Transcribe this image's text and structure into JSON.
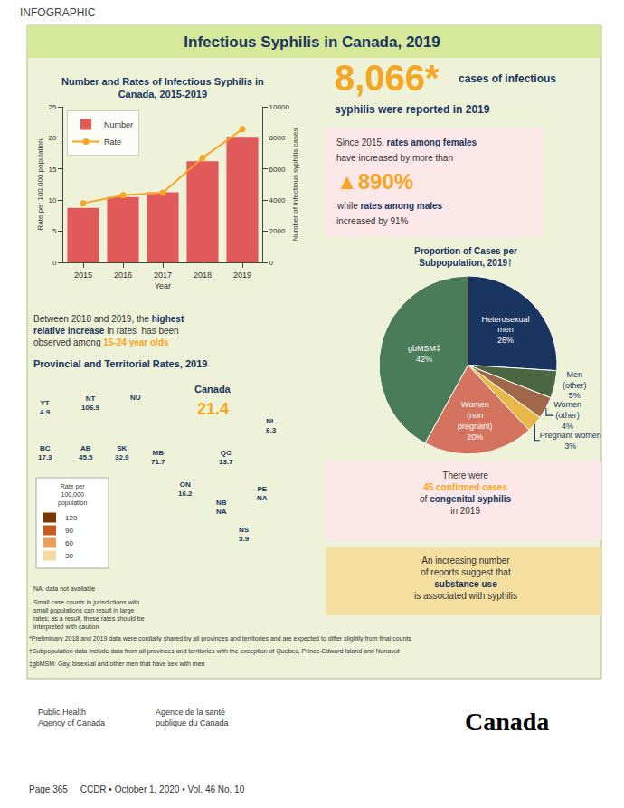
{
  "title": "Infectious Syphilis in Canada, 2019",
  "palette": {
    "navy": "#1a3560",
    "orange": "#f5a623",
    "text": "#333333",
    "header": "#444444",
    "panel": "#eef2d8",
    "band": "#d6e89a",
    "border": "#b0b880",
    "pink": "#fce8e8",
    "sand": "#f5dfa0"
  },
  "chart_data": [
    {
      "type": "bar",
      "title": "Number and Rates of Infectious Syphilis in\nCanada, 2015-2019",
      "x": [
        2015,
        2016,
        2017,
        2018,
        2019
      ],
      "xlim": [
        2014.5,
        2019.5
      ],
      "xticks": [
        2015,
        2016,
        2017,
        2018,
        2019
      ],
      "x_label": "Year",
      "y_label": "Number of infectious syphilis cases",
      "y2_label": "Rate per 100,000 population",
      "ylim": [
        0,
        10000
      ],
      "yticks": [
        0,
        2000,
        4000,
        6000,
        8000,
        10000
      ],
      "y2lim": [
        0,
        25
      ],
      "y2ticks": [
        0,
        5,
        10,
        15,
        20,
        25
      ],
      "grid": false,
      "legend": "upper left",
      "series": [
        {
          "name": "Number",
          "type": "bar",
          "color": "#e05a5a",
          "values": [
            3500,
            4200,
            4500,
            6500,
            8066
          ]
        },
        {
          "name": "Rate",
          "type": "line",
          "color": "#f5a623",
          "marker": "circle",
          "axis": "y2",
          "values": [
            9.5,
            10.8,
            11.2,
            16.8,
            21.4
          ]
        }
      ]
    },
    {
      "type": "pie",
      "title": "Proportion of Cases per\nSubpopulation, 2019†",
      "values": [
        26,
        5,
        4,
        3,
        20,
        42
      ],
      "value_labels": [
        "Heterosexual\nmen\n26%",
        "Men\n(other)\n5%",
        "Women\n(other)\n4%",
        "Pregnant women\n3%",
        "Women\n(non\npregnant)\n20%",
        "gbMSM‡\n42%"
      ],
      "colors": [
        "#1a3560",
        "#4a6741",
        "#a0674a",
        "#e8b84b",
        "#d4735e",
        "#4a7c5a"
      ]
    }
  ],
  "map_legend": {
    "title": "Rate per\n100,000\npopulation",
    "values": [
      "120",
      "90",
      "60",
      "30"
    ],
    "colors": [
      "#7b3600",
      "#c45c1e",
      "#e8a05a",
      "#f5d9a0"
    ]
  },
  "annotations": [
    [
      {
        "text": "INFOGRAPHIC",
        "color": "#444444"
      }
    ],
    [
      {
        "text": "Between 2018 and 2019, the ",
        "color": "#333333"
      },
      {
        "text": "highest\nrelative increase",
        "color": "#1a3560"
      },
      {
        "text": " in rates  has been\nobserved among ",
        "color": "#333333"
      },
      {
        "text": "15-24 year olds",
        "color": "#f5a623"
      }
    ],
    [
      {
        "text": "Provincial and Territorial Rates, 2019",
        "color": "#1a3560"
      }
    ],
    [
      {
        "text": "YT\n4.9",
        "color": "#1a3560"
      }
    ],
    [
      {
        "text": "NT\n106.9",
        "color": "#1a3560"
      }
    ],
    [
      {
        "text": "NU",
        "color": "#1a3560"
      }
    ],
    [
      {
        "text": "BC\n17.3",
        "color": "#1a3560"
      }
    ],
    [
      {
        "text": "AB\n45.5",
        "color": "#1a3560"
      }
    ],
    [
      {
        "text": "SK\n32.9",
        "color": "#1a3560"
      }
    ],
    [
      {
        "text": "MB\n71.7",
        "color": "#1a3560"
      }
    ],
    [
      {
        "text": "ON\n16.2",
        "color": "#1a3560"
      }
    ],
    [
      {
        "text": "QC\n13.7",
        "color": "#1a3560"
      }
    ],
    [
      {
        "text": "NL\n6.3",
        "color": "#1a3560"
      }
    ],
    [
      {
        "text": "PE\nNA",
        "color": "#1a3560"
      }
    ],
    [
      {
        "text": "NB\nNA",
        "color": "#1a3560"
      }
    ],
    [
      {
        "text": "NS\n5.9",
        "color": "#1a3560"
      }
    ],
    [
      {
        "text": "Canada",
        "color": "#1a3560"
      }
    ],
    [
      {
        "text": "21.4",
        "color": "#f5a623"
      }
    ],
    [
      {
        "text": "NA: data not available",
        "color": "#333333"
      }
    ],
    [
      {
        "text": "Small case counts in jurisdictions with\nsmall populations can result in large\nrates; as a result, these rates should be\ninterpreted with caution",
        "color": "#333333"
      }
    ],
    [
      {
        "text": "8,066",
        "color": "#f5a623"
      },
      {
        "text": "*",
        "color": "#f5a623"
      }
    ],
    [
      {
        "text": "cases of infectious",
        "color": "#1a3560"
      }
    ],
    [
      {
        "text": "syphilis were reported in 2019",
        "color": "#1a3560"
      }
    ],
    [
      {
        "text": "Since 2015, ",
        "color": "#333333"
      },
      {
        "text": "rates among females",
        "color": "#1a3560"
      }
    ],
    [
      {
        "text": "have increased by more than",
        "color": "#333333"
      }
    ],
    [
      {
        "text": "▲890%",
        "color": "#f5a623"
      }
    ],
    [
      {
        "text": "while ",
        "color": "#333333"
      },
      {
        "text": "rates among males",
        "color": "#1a3560"
      }
    ],
    [
      {
        "text": "increased by 91%",
        "color": "#333333"
      }
    ],
    [
      {
        "text": "There were\n",
        "color": "#333333"
      },
      {
        "text": "45 confirmed cases",
        "color": "#f5a623"
      },
      {
        "text": "\nof ",
        "color": "#333333"
      },
      {
        "text": "congenital syphilis",
        "color": "#1a3560"
      },
      {
        "text": "\nin 2019",
        "color": "#333333"
      }
    ],
    [
      {
        "text": "An increasing number\nof reports suggest that\n",
        "color": "#333333"
      },
      {
        "text": "substance use",
        "color": "#1a3560"
      },
      {
        "text": "\nis associated with syphilis",
        "color": "#333333"
      }
    ],
    [
      {
        "text": "*Preliminary 2018 and 2019 data were cordially shared by all provinces and territories and are expected to differ slightly from final counts",
        "color": "#333333"
      }
    ],
    [
      {
        "text": "†Subpopulation data include data from all provinces and territories with the exception of Quebec, Prince-Edward Island and Nunavut",
        "color": "#333333"
      }
    ],
    [
      {
        "text": "‡gbMSM: Gay, bisexual and other men that have sex with men",
        "color": "#333333"
      }
    ],
    [
      {
        "text": "Public Health\nAgency of Canada",
        "color": "#333333"
      }
    ],
    [
      {
        "text": "Agence de la santé\npublique du Canada",
        "color": "#333333"
      }
    ],
    [
      {
        "text": "Canada",
        "color": "#000000"
      }
    ],
    [
      {
        "text": "Page 365     CCDR • October 1, 2020 • Vol. 46 No. 10",
        "color": "#333333"
      }
    ]
  ]
}
